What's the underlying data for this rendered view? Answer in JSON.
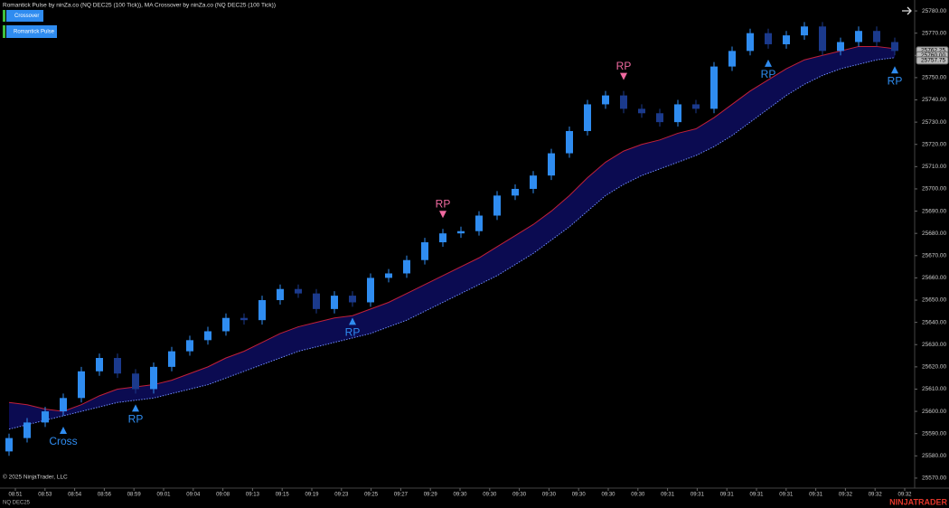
{
  "chart_data": {
    "type": "candlestick",
    "title": "Romantick Pulse by ninZa.co (NQ DEC25 (100 Tick)), MA Crossover by ninZa.co (NQ DEC25 (100 Tick))",
    "buttons": [
      "Crossover",
      "Romantick Pulse"
    ],
    "instrument": "NQ DEC25",
    "copyright": "© 2025 NinjaTrader, LLC",
    "brand": "NINJATRADER",
    "up_color": "#2f8cf0",
    "down_color": "#1b3a8c",
    "open": [
      25582,
      25588,
      25595,
      25600,
      25606,
      25618,
      25624,
      25617,
      25610,
      25620,
      25627,
      25632,
      25636,
      25642,
      25641,
      25650,
      25655,
      25653,
      25646,
      25652,
      25649,
      25660,
      25662,
      25668,
      25676,
      25680,
      25681,
      25688,
      25697,
      25700,
      25706,
      25716,
      25726,
      25738,
      25742,
      25736,
      25734,
      25730,
      25738,
      25736,
      25755,
      25762,
      25770,
      25765,
      25769,
      25773,
      25762,
      25766,
      25771,
      25766
    ],
    "high": [
      25590,
      25597,
      25602,
      25608,
      25620,
      25626,
      25626,
      25619,
      25622,
      25629,
      25634,
      25638,
      25644,
      25644,
      25652,
      25657,
      25657,
      25655,
      25654,
      25654,
      25662,
      25664,
      25670,
      25678,
      25682,
      25683,
      25690,
      25699,
      25702,
      25708,
      25718,
      25728,
      25740,
      25744,
      25744,
      25738,
      25736,
      25740,
      25740,
      25757,
      25764,
      25772,
      25772,
      25771,
      25775,
      25775,
      25768,
      25773,
      25773,
      25768
    ],
    "low": [
      25580,
      25586,
      25593,
      25598,
      25604,
      25616,
      25615,
      25608,
      25608,
      25618,
      25625,
      25630,
      25634,
      25639,
      25639,
      25648,
      25651,
      25644,
      25644,
      25647,
      25647,
      25658,
      25660,
      25666,
      25674,
      25678,
      25679,
      25686,
      25695,
      25698,
      25704,
      25714,
      25724,
      25736,
      25734,
      25732,
      25728,
      25728,
      25734,
      25734,
      25753,
      25760,
      25763,
      25763,
      25767,
      25760,
      25760,
      25764,
      25764,
      25760
    ],
    "close": [
      25588,
      25595,
      25600,
      25606,
      25618,
      25624,
      25617,
      25610,
      25620,
      25627,
      25632,
      25636,
      25642,
      25641,
      25650,
      25655,
      25653,
      25646,
      25652,
      25649,
      25660,
      25662,
      25668,
      25676,
      25680,
      25681,
      25688,
      25697,
      25700,
      25706,
      25716,
      25726,
      25738,
      25742,
      25736,
      25734,
      25730,
      25738,
      25736,
      25755,
      25762,
      25770,
      25765,
      25769,
      25773,
      25762,
      25766,
      25771,
      25766,
      25762
    ],
    "series": [
      {
        "color": "#c0203a",
        "values": [
          25604,
          25603,
          25601,
          25600,
          25603,
          25607,
          25610,
          25611,
          25612,
          25614,
          25617,
          25620,
          25624,
          25627,
          25631,
          25635,
          25638,
          25640,
          25642,
          25643,
          25646,
          25649,
          25653,
          25657,
          25661,
          25665,
          25669,
          25674,
          25679,
          25684,
          25690,
          25697,
          25705,
          25712,
          25717,
          25720,
          25722,
          25725,
          25727,
          25732,
          25738,
          25744,
          25749,
          25754,
          25758,
          25760,
          25762,
          25764,
          25764,
          25763
        ]
      },
      {
        "color": "#6f8cff",
        "values": [
          25592,
          25594,
          25596,
          25598,
          25600,
          25602,
          25604,
          25605,
          25606,
          25608,
          25610,
          25612,
          25615,
          25618,
          25621,
          25624,
          25627,
          25629,
          25631,
          25633,
          25635,
          25638,
          25641,
          25645,
          25649,
          25653,
          25657,
          25661,
          25666,
          25671,
          25677,
          25683,
          25690,
          25697,
          25702,
          25706,
          25709,
          25712,
          25715,
          25719,
          25724,
          25730,
          25736,
          25742,
          25747,
          25751,
          25754,
          25756,
          25758,
          25759
        ]
      }
    ],
    "signals": [
      {
        "label": "Cross",
        "candle": 3,
        "direction": "up"
      },
      {
        "label": "RP",
        "candle": 7,
        "direction": "up"
      },
      {
        "label": "RP",
        "candle": 19,
        "direction": "up"
      },
      {
        "label": "RP",
        "candle": 24,
        "direction": "down"
      },
      {
        "label": "RP",
        "candle": 34,
        "direction": "down"
      },
      {
        "label": "RP",
        "candle": 42,
        "direction": "up"
      },
      {
        "label": "RP",
        "candle": 49,
        "direction": "up"
      }
    ],
    "price_markers": [
      {
        "value": 25762.25,
        "label": "25762.25"
      },
      {
        "value": 25760.0,
        "label": "25760.00"
      },
      {
        "value": 25757.75,
        "label": "25757.75"
      }
    ],
    "x_tick_labels": [
      "08:51",
      "08:53",
      "08:54",
      "08:56",
      "08:59",
      "09:01",
      "09:04",
      "09:08",
      "09:13",
      "09:15",
      "09:19",
      "09:23",
      "09:25",
      "09:27",
      "09:29",
      "09:30",
      "09:30",
      "09:30",
      "09:30",
      "09:30",
      "09:30",
      "09:30",
      "09:31",
      "09:31",
      "09:31",
      "09:31",
      "09:31",
      "09:31",
      "09:32",
      "09:32",
      "09:32"
    ],
    "ylim": [
      25565.5,
      25784.9
    ],
    "yticks": [
      {
        "value": 25570,
        "label": "25570.00"
      },
      {
        "value": 25580,
        "label": "25580.00"
      },
      {
        "value": 25590,
        "label": "25590.00"
      },
      {
        "value": 25600,
        "label": "25600.00"
      },
      {
        "value": 25610,
        "label": "25610.00"
      },
      {
        "value": 25620,
        "label": "25620.00"
      },
      {
        "value": 25630,
        "label": "25630.00"
      },
      {
        "value": 25640,
        "label": "25640.00"
      },
      {
        "value": 25650,
        "label": "25650.00"
      },
      {
        "value": 25660,
        "label": "25660.00"
      },
      {
        "value": 25670,
        "label": "25670.00"
      },
      {
        "value": 25680,
        "label": "25680.00"
      },
      {
        "value": 25690,
        "label": "25690.00"
      },
      {
        "value": 25700,
        "label": "25700.00"
      },
      {
        "value": 25710,
        "label": "25710.00"
      },
      {
        "value": 25720,
        "label": "25720.00"
      },
      {
        "value": 25730,
        "label": "25730.00"
      },
      {
        "value": 25740,
        "label": "25740.00"
      },
      {
        "value": 25750,
        "label": "25750.00"
      },
      {
        "value": 25760,
        "label": "25760.00"
      },
      {
        "value": 25770,
        "label": "25770.00"
      },
      {
        "value": 25780,
        "label": "25780.00"
      }
    ]
  }
}
